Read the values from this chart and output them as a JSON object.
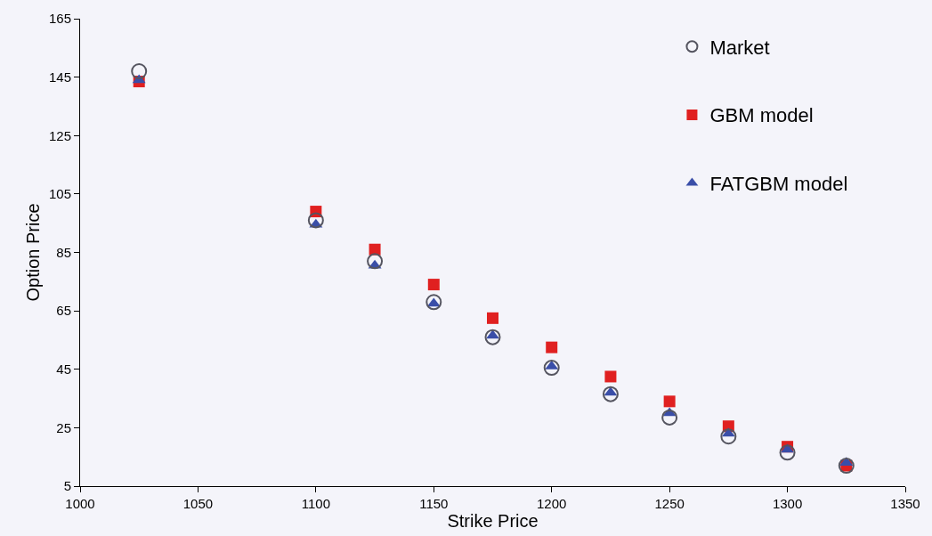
{
  "chart_data": {
    "type": "scatter",
    "xlabel": "Strike Price",
    "ylabel": "Option Price",
    "x": [
      1025,
      1100,
      1125,
      1150,
      1175,
      1200,
      1225,
      1250,
      1275,
      1300,
      1325
    ],
    "series": [
      {
        "name": "Market",
        "color": "#555560",
        "marker": "circle",
        "values": [
          147,
          96,
          82,
          68,
          56,
          45.5,
          36.5,
          28.5,
          22,
          16.5,
          12
        ]
      },
      {
        "name": "GBM model",
        "color": "#e02020",
        "marker": "square",
        "values": [
          143.5,
          99,
          86,
          74,
          62.5,
          52.5,
          42.5,
          34,
          25.5,
          18.5,
          12
        ]
      },
      {
        "name": "FATGBM model",
        "color": "#3a4ea8",
        "marker": "triangle",
        "values": [
          144,
          94.5,
          80.5,
          67.5,
          56.5,
          46,
          37,
          30,
          23,
          17.5,
          13
        ]
      }
    ],
    "xlim": [
      1000,
      1350
    ],
    "xticks": [
      1000,
      1050,
      1100,
      1150,
      1200,
      1250,
      1300,
      1350
    ],
    "ylim": [
      5,
      165
    ],
    "yticks": [
      5,
      25,
      45,
      65,
      85,
      105,
      125,
      145,
      165
    ],
    "grid": false,
    "legend": "top right"
  }
}
